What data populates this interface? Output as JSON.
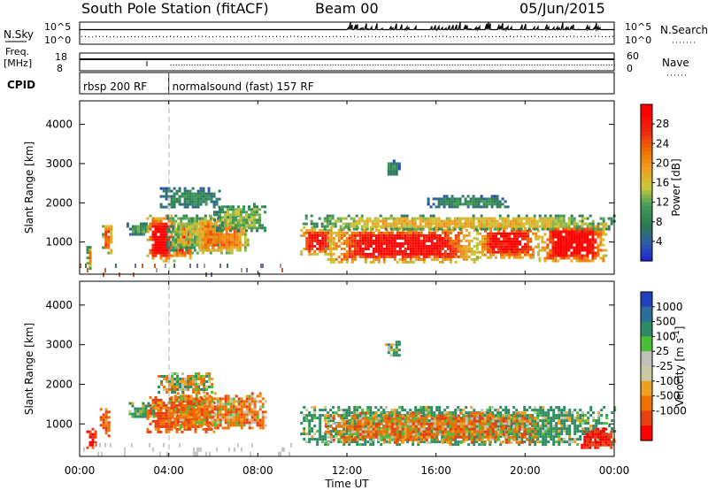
{
  "header": {
    "title": "South Pole Station (fitACF)",
    "beam": "Beam 00",
    "date": "05/Jun/2015"
  },
  "top_panels": {
    "nsky_label": "N.Sky",
    "nsky_ticks": [
      "10^5",
      "10^0"
    ],
    "nsearch_label": "N.Search",
    "nsearch_ticks": [
      "10^5",
      "10^0"
    ],
    "freq_label_1": "Freq.",
    "freq_label_2": "[MHz]",
    "freq_ticks": [
      "18",
      "8"
    ],
    "nave_label": "Nave",
    "nave_ticks": [
      "60",
      "0"
    ],
    "cpid_label": "CPID",
    "cpid_segments": [
      {
        "label": "rbsp 200 RF",
        "start_hour": 0,
        "end_hour": 4
      },
      {
        "label": "normalsound (fast) 157 RF",
        "start_hour": 4,
        "end_hour": 24
      }
    ]
  },
  "time_axis": {
    "label": "Time UT",
    "ticks": [
      "00:00",
      "04:00",
      "08:00",
      "12:00",
      "16:00",
      "20:00",
      "00:00"
    ],
    "tick_hours": [
      0,
      4,
      8,
      12,
      16,
      20,
      24
    ]
  },
  "colors": {
    "power_scale": [
      "#1e22d4",
      "#2b5fa6",
      "#2e7d4f",
      "#3f9c5a",
      "#c8c83a",
      "#f0a020",
      "#f07000",
      "#ee2a10",
      "#ff0000"
    ],
    "velocity_scale": [
      "#2040c0",
      "#2a6e9a",
      "#2e8a62",
      "#4cbf3a",
      "#c0c0b8",
      "#c9c8a0",
      "#f0a020",
      "#f07000",
      "#e84010",
      "#ff0000"
    ]
  },
  "chart_data": [
    {
      "type": "heatmap",
      "name": "power",
      "ylabel": "Slant Range [km]",
      "xlabel": "",
      "x_range_hours": [
        0,
        24
      ],
      "ylim": [
        180,
        4600
      ],
      "y_ticks": [
        1000,
        2000,
        3000,
        4000
      ],
      "colorbar": {
        "label": "Power [dB]",
        "ticks": [
          "4",
          "8",
          "12",
          "16",
          "20",
          "24",
          "28"
        ],
        "tick_values": [
          4,
          8,
          12,
          16,
          20,
          24,
          28
        ],
        "range": [
          0,
          32
        ]
      },
      "regions": [
        {
          "t": [
            0.3,
            0.5
          ],
          "r": [
            350,
            900
          ],
          "value": 20
        },
        {
          "t": [
            1.0,
            1.4
          ],
          "r": [
            700,
            1500
          ],
          "value": 22
        },
        {
          "t": [
            2.1,
            3.1
          ],
          "r": [
            1200,
            1500
          ],
          "value": 10
        },
        {
          "t": [
            3.0,
            4.2
          ],
          "r": [
            500,
            1700
          ],
          "value": 28
        },
        {
          "t": [
            4.2,
            5.0
          ],
          "r": [
            600,
            1500
          ],
          "value": 26
        },
        {
          "t": [
            3.9,
            6.2
          ],
          "r": [
            800,
            1700
          ],
          "value": 14
        },
        {
          "t": [
            5.0,
            7.6
          ],
          "r": [
            700,
            1700
          ],
          "value": 20
        },
        {
          "t": [
            6.0,
            8.3
          ],
          "r": [
            1300,
            2000
          ],
          "value": 12
        },
        {
          "t": [
            3.6,
            6.3
          ],
          "r": [
            1900,
            2400
          ],
          "value": 8
        },
        {
          "t": [
            9.9,
            11.3
          ],
          "r": [
            700,
            1400
          ],
          "value": 26
        },
        {
          "t": [
            11.0,
            17.8
          ],
          "r": [
            500,
            1400
          ],
          "value": 27
        },
        {
          "t": [
            17.8,
            20.6
          ],
          "r": [
            600,
            1450
          ],
          "value": 26
        },
        {
          "t": [
            20.6,
            23.6
          ],
          "r": [
            500,
            1500
          ],
          "value": 28
        },
        {
          "t": [
            10.0,
            24.0
          ],
          "r": [
            1350,
            1700
          ],
          "value": 16
        },
        {
          "t": [
            13.7,
            14.3
          ],
          "r": [
            2700,
            3100
          ],
          "value": 8
        },
        {
          "t": [
            15.6,
            19.2
          ],
          "r": [
            1900,
            2200
          ],
          "value": 8
        },
        {
          "t": [
            0.0,
            9.3
          ],
          "r": [
            200,
            450
          ],
          "value": 10
        }
      ]
    },
    {
      "type": "heatmap",
      "name": "velocity",
      "ylabel": "Slant Range [km]",
      "xlabel": "Time UT",
      "x_range_hours": [
        0,
        24
      ],
      "ylim": [
        180,
        4600
      ],
      "y_ticks": [
        1000,
        2000,
        3000,
        4000
      ],
      "colorbar": {
        "label": "Velocity [m s^-1]",
        "ticks": [
          "1000",
          "500",
          "100",
          "25",
          "-25",
          "-100",
          "-500",
          "-1000"
        ],
        "tick_values": [
          1000,
          500,
          100,
          25,
          -25,
          -100,
          -500,
          -1000
        ]
      },
      "regions": [
        {
          "t": [
            0.3,
            0.7
          ],
          "r": [
            400,
            900
          ],
          "value": -500
        },
        {
          "t": [
            0.9,
            1.3
          ],
          "r": [
            700,
            1400
          ],
          "value": -300
        },
        {
          "t": [
            2.2,
            3.5
          ],
          "r": [
            1150,
            1550
          ],
          "value": 150
        },
        {
          "t": [
            3.0,
            6.0
          ],
          "r": [
            800,
            1700
          ],
          "value": -300
        },
        {
          "t": [
            4.0,
            8.3
          ],
          "r": [
            900,
            1800
          ],
          "value": -150
        },
        {
          "t": [
            3.5,
            6.0
          ],
          "r": [
            1800,
            2300
          ],
          "value": 0
        },
        {
          "t": [
            9.9,
            24.0
          ],
          "r": [
            500,
            1450
          ],
          "value": 200
        },
        {
          "t": [
            11.0,
            20.5
          ],
          "r": [
            550,
            1300
          ],
          "value": -150
        },
        {
          "t": [
            22.5,
            24.0
          ],
          "r": [
            400,
            900
          ],
          "value": -600
        },
        {
          "t": [
            13.7,
            14.3
          ],
          "r": [
            2700,
            3100
          ],
          "value": 150
        },
        {
          "t": [
            0.0,
            9.5
          ],
          "r": [
            220,
            520
          ],
          "value": 10
        }
      ]
    }
  ]
}
